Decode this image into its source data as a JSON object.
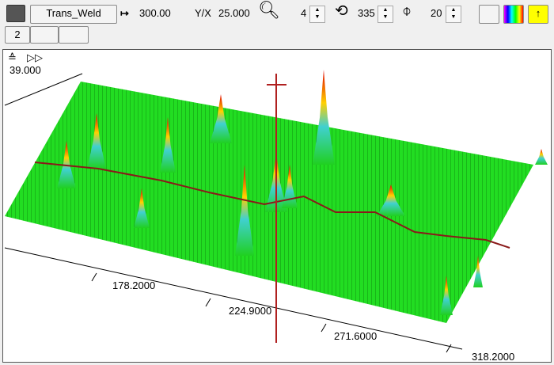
{
  "toolbar": {
    "profile_button": "Trans_Weld",
    "length": "300.00",
    "ratio_label": "Y/X",
    "ratio_value": "25.000",
    "zoom_value": "4",
    "rotation_value": "335",
    "tilt_value": "20",
    "page_tab": "2"
  },
  "plot": {
    "corner_label": "39.000",
    "axis_labels": [
      "178.2000",
      "224.9000",
      "271.6000",
      "318.2000"
    ]
  }
}
